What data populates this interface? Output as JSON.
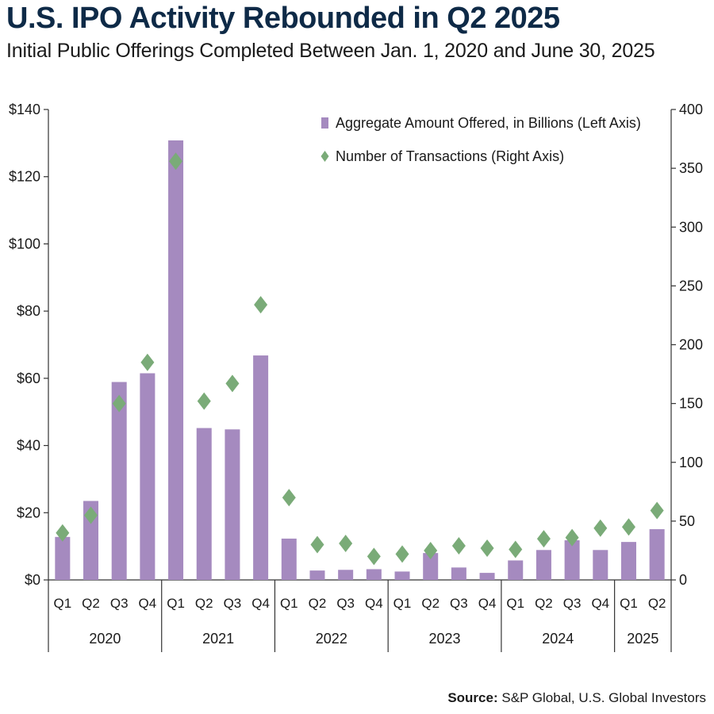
{
  "header": {
    "title": "U.S. IPO Activity Rebounded in Q2 2025",
    "subtitle": "Initial Public Offerings Completed Between Jan. 1, 2020 and June 30, 2025"
  },
  "source": {
    "label": "Source:",
    "text": "S&P Global, U.S. Global Investors"
  },
  "colors": {
    "bar": "#a58abf",
    "marker": "#7aab78",
    "axis": "#333333",
    "text": "#1a1a1a"
  },
  "chart_data": {
    "type": "bar",
    "title": "U.S. IPO Activity Rebounded in Q2 2025",
    "categories": [
      "Q1",
      "Q2",
      "Q3",
      "Q4",
      "Q1",
      "Q2",
      "Q3",
      "Q4",
      "Q1",
      "Q2",
      "Q3",
      "Q4",
      "Q1",
      "Q2",
      "Q3",
      "Q4",
      "Q1",
      "Q2",
      "Q3",
      "Q4",
      "Q1",
      "Q2"
    ],
    "groups": [
      {
        "label": "2020",
        "count": 4
      },
      {
        "label": "2021",
        "count": 4
      },
      {
        "label": "2022",
        "count": 4
      },
      {
        "label": "2023",
        "count": 4
      },
      {
        "label": "2024",
        "count": 4
      },
      {
        "label": "2025",
        "count": 2
      }
    ],
    "series": [
      {
        "name": "Aggregate Amount Offered, in Billions (Left Axis)",
        "type": "bar",
        "axis": "left",
        "values": [
          12.8,
          23.5,
          58.9,
          61.5,
          130.8,
          45.2,
          44.8,
          66.8,
          12.3,
          2.8,
          3.0,
          3.2,
          2.5,
          8.0,
          3.7,
          2.1,
          5.8,
          8.9,
          11.8,
          8.9,
          11.3,
          15.1
        ]
      },
      {
        "name": "Number of Transactions (Right Axis)",
        "type": "scatter",
        "axis": "right",
        "values": [
          40,
          55,
          150,
          185,
          356,
          152,
          167,
          234,
          70,
          30,
          31,
          20,
          22,
          25,
          29,
          27,
          26,
          35,
          36,
          44,
          45,
          59
        ]
      }
    ],
    "y_left": {
      "ylim": [
        0,
        140
      ],
      "ticks": [
        0,
        20,
        40,
        60,
        80,
        100,
        120,
        140
      ],
      "tick_labels": [
        "$0",
        "$20",
        "$40",
        "$60",
        "$80",
        "$100",
        "$120",
        "$140"
      ]
    },
    "y_right": {
      "ylim": [
        0,
        400
      ],
      "ticks": [
        0,
        50,
        100,
        150,
        200,
        250,
        300,
        350,
        400
      ],
      "tick_labels": [
        "0",
        "50",
        "100",
        "150",
        "200",
        "250",
        "300",
        "350",
        "400"
      ]
    },
    "legend": {
      "placement": "top-right",
      "items": [
        {
          "label": "Aggregate Amount Offered, in Billions (Left Axis)",
          "symbol": "bar"
        },
        {
          "label": "Number of Transactions (Right Axis)",
          "symbol": "diamond"
        }
      ]
    },
    "grid": false
  }
}
